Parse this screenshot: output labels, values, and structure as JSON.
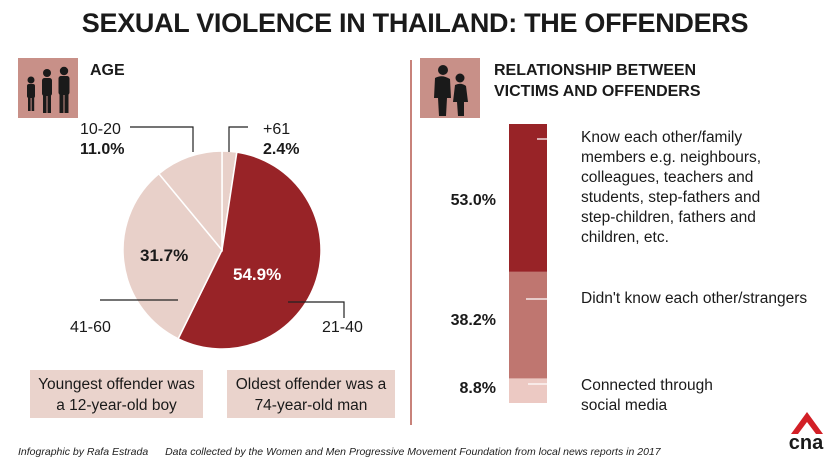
{
  "title": "SEXUAL VIOLENCE IN THAILAND: THE OFFENDERS",
  "colors": {
    "dark_red": "#982327",
    "mid_rose": "#bf7670",
    "pale_pink": "#e8d0c9",
    "light_pink": "#ecd4ce",
    "accent": "#c8827a",
    "logo_red": "#d21f26"
  },
  "age_section": {
    "title": "AGE",
    "icon": "family-silhouette-icon",
    "labels": [
      {
        "range": "10-20",
        "pct": "11.0%"
      },
      {
        "range": "+61",
        "pct": "2.4%"
      },
      {
        "range": "41-60",
        "pct": "31.7%"
      },
      {
        "range": "21-40",
        "pct": "54.9%"
      }
    ],
    "notes": {
      "youngest": "Youngest offender was a 12-year-old boy",
      "oldest": "Oldest offender was a 74-year-old man"
    }
  },
  "relationship_section": {
    "title_line1": "RELATIONSHIP BETWEEN",
    "title_line2": "VICTIMS AND OFFENDERS",
    "icon": "couple-silhouette-icon",
    "items": [
      {
        "pct": "53.0%",
        "label": "Know each other/family members e.g. neighbours, colleagues, teachers and students, step-fathers and step-children, fathers and children, etc."
      },
      {
        "pct": "38.2%",
        "label": "Didn't know each other/strangers"
      },
      {
        "pct": "8.8%",
        "label": "Connected through social media"
      }
    ]
  },
  "chart_data": [
    {
      "type": "pie",
      "title": "AGE",
      "categories": [
        "+61",
        "21-40",
        "41-60",
        "10-20"
      ],
      "values": [
        2.4,
        54.9,
        31.7,
        11.0
      ],
      "colors": [
        "#e8d0c9",
        "#982327",
        "#e8d0c9",
        "#e8d0c9"
      ]
    },
    {
      "type": "bar",
      "stacked": true,
      "title": "RELATIONSHIP BETWEEN VICTIMS AND OFFENDERS",
      "categories": [
        "Know each other/family members e.g. neighbours, colleagues, teachers and students, step-fathers and step-children, fathers and children, etc.",
        "Didn't know each other/strangers",
        "Connected through social media"
      ],
      "values": [
        53.0,
        38.2,
        8.8
      ],
      "colors": [
        "#982327",
        "#bf7670",
        "#ecc9c3"
      ]
    }
  ],
  "footer": {
    "credit": "Infographic by Rafa Estrada",
    "source": "Data collected by the Women and Men Progressive Movement Foundation from local news reports in 2017"
  },
  "logo": {
    "text": "cna"
  }
}
